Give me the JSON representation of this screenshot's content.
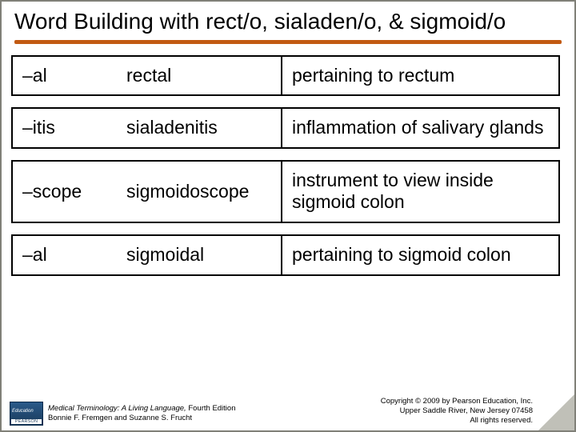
{
  "title": "Word Building with rect/o, sialaden/o, & sigmoid/o",
  "accent_color": "#c25a12",
  "rows": [
    {
      "suffix": "–al",
      "term": "rectal",
      "definition": "pertaining to rectum"
    },
    {
      "suffix": "–itis",
      "term": "sialadenitis",
      "definition": "inflammation of salivary glands"
    },
    {
      "suffix": "–scope",
      "term": "sigmoidoscope",
      "definition": "instrument to view inside sigmoid colon"
    },
    {
      "suffix": "–al",
      "term": "sigmoidal",
      "definition": "pertaining to sigmoid colon"
    }
  ],
  "footer": {
    "book_title": "Medical Terminology: A Living Language,",
    "edition": " Fourth Edition",
    "authors": "Bonnie F. Fremgen and Suzanne S. Frucht",
    "copyright": "Copyright © 2009 by Pearson Education, Inc.",
    "address": "Upper Saddle River, New Jersey 07458",
    "rights": "All rights reserved."
  }
}
